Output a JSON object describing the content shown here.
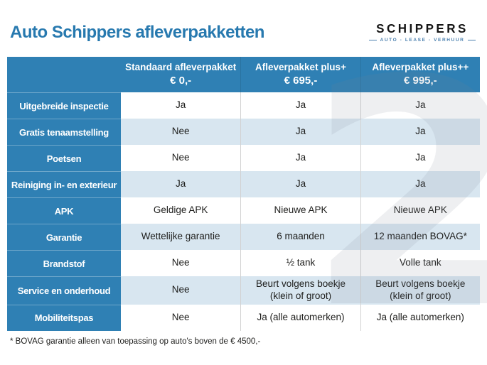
{
  "page": {
    "title": "Auto Schippers afleverpakketten",
    "footnote": "* BOVAG garantie alleen van toepassing op auto's boven de € 4500,-"
  },
  "logo": {
    "name": "SCHIPPERS",
    "tagline": "AUTO - LEASE - VERHUUR"
  },
  "colors": {
    "title_blue": "#2779af",
    "table_blue": "#2f80b4",
    "stripe_light_blue": "#d8e6f0",
    "stripe_white": "#ffffff",
    "text_dark": "#1d1d1b",
    "logo_tagline_blue": "#4a7fae",
    "watermark_gray": "#ececec"
  },
  "watermark": {
    "glyph": "2"
  },
  "table": {
    "columns": [
      {
        "label": "Standaard afleverpakket",
        "price": "€ 0,-"
      },
      {
        "label": "Afleverpakket plus+",
        "price": "€ 695,-"
      },
      {
        "label": "Afleverpakket plus++",
        "price": "€ 995,-"
      }
    ],
    "rows": [
      {
        "label": "Uitgebreide inspectie",
        "values": [
          "Ja",
          "Ja",
          "Ja"
        ]
      },
      {
        "label": "Gratis tenaamstelling",
        "values": [
          "Nee",
          "Ja",
          "Ja"
        ]
      },
      {
        "label": "Poetsen",
        "values": [
          "Nee",
          "Ja",
          "Ja"
        ]
      },
      {
        "label": "Reiniging in- en exterieur",
        "values": [
          "Ja",
          "Ja",
          "Ja"
        ]
      },
      {
        "label": "APK",
        "values": [
          "Geldige APK",
          "Nieuwe APK",
          "Nieuwe APK"
        ]
      },
      {
        "label": "Garantie",
        "values": [
          "Wettelijke garantie",
          "6 maanden",
          "12 maanden BOVAG*"
        ]
      },
      {
        "label": "Brandstof",
        "values": [
          "Nee",
          "½ tank",
          "Volle tank"
        ]
      },
      {
        "label": "Service en onderhoud",
        "values": [
          "Nee",
          "Beurt volgens boekje (klein of groot)",
          "Beurt volgens boekje (klein of groot)"
        ]
      },
      {
        "label": "Mobiliteitspas",
        "values": [
          "Nee",
          "Ja (alle automerken)",
          "Ja (alle automerken)"
        ]
      }
    ]
  }
}
